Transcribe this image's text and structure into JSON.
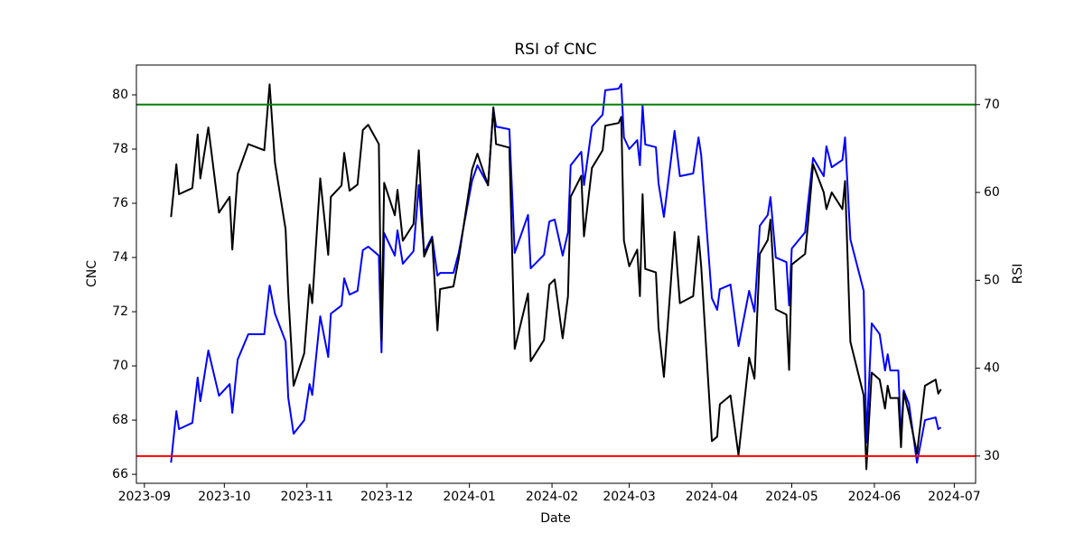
{
  "chart_data": {
    "type": "line",
    "title": "RSI of CNC",
    "xlabel": "Date",
    "ylabel": "CNC",
    "y2label": "RSI",
    "x": [
      "2023-09-11",
      "2023-09-13",
      "2023-09-14",
      "2023-09-19",
      "2023-09-21",
      "2023-09-22",
      "2023-09-25",
      "2023-09-29",
      "2023-10-03",
      "2023-10-04",
      "2023-10-06",
      "2023-10-10",
      "2023-10-16",
      "2023-10-18",
      "2023-10-20",
      "2023-10-24",
      "2023-10-25",
      "2023-10-27",
      "2023-10-31",
      "2023-11-02",
      "2023-11-03",
      "2023-11-06",
      "2023-11-09",
      "2023-11-10",
      "2023-11-14",
      "2023-11-15",
      "2023-11-17",
      "2023-11-20",
      "2023-11-22",
      "2023-11-24",
      "2023-11-28",
      "2023-11-29",
      "2023-11-30",
      "2023-12-04",
      "2023-12-05",
      "2023-12-07",
      "2023-12-11",
      "2023-12-13",
      "2023-12-15",
      "2023-12-18",
      "2023-12-20",
      "2023-12-21",
      "2023-12-26",
      "2023-12-28",
      "2024-01-02",
      "2024-01-04",
      "2024-01-08",
      "2024-01-10",
      "2024-01-11",
      "2024-01-16",
      "2024-01-18",
      "2024-01-23",
      "2024-01-24",
      "2024-01-29",
      "2024-01-31",
      "2024-02-02",
      "2024-02-05",
      "2024-02-07",
      "2024-02-08",
      "2024-02-12",
      "2024-02-13",
      "2024-02-16",
      "2024-02-20",
      "2024-02-21",
      "2024-02-26",
      "2024-02-27",
      "2024-02-28",
      "2024-03-01",
      "2024-03-04",
      "2024-03-05",
      "2024-03-06",
      "2024-03-07",
      "2024-03-11",
      "2024-03-12",
      "2024-03-14",
      "2024-03-18",
      "2024-03-20",
      "2024-03-25",
      "2024-03-27",
      "2024-03-28",
      "2024-04-01",
      "2024-04-03",
      "2024-04-04",
      "2024-04-08",
      "2024-04-11",
      "2024-04-15",
      "2024-04-17",
      "2024-04-19",
      "2024-04-22",
      "2024-04-23",
      "2024-04-25",
      "2024-04-29",
      "2024-04-30",
      "2024-05-01",
      "2024-05-06",
      "2024-05-07",
      "2024-05-09",
      "2024-05-13",
      "2024-05-14",
      "2024-05-16",
      "2024-05-20",
      "2024-05-21",
      "2024-05-23",
      "2024-05-28",
      "2024-05-29",
      "2024-05-31",
      "2024-06-03",
      "2024-06-05",
      "2024-06-06",
      "2024-06-07",
      "2024-06-10",
      "2024-06-11",
      "2024-06-12",
      "2024-06-14",
      "2024-06-17",
      "2024-06-20",
      "2024-06-24",
      "2024-06-25",
      "2024-06-26"
    ],
    "series": [
      {
        "color": "#0000ff",
        "axis": "y",
        "values": [
          66.43,
          68.33,
          67.67,
          67.9,
          69.57,
          68.7,
          70.57,
          68.9,
          69.33,
          68.27,
          70.23,
          71.17,
          71.17,
          72.97,
          71.93,
          70.9,
          68.83,
          67.5,
          68,
          69.33,
          68.93,
          71.83,
          70.33,
          71.93,
          72.23,
          73.23,
          72.63,
          72.77,
          74.27,
          74.4,
          74.07,
          70.5,
          74.9,
          74.07,
          75,
          73.77,
          74.23,
          76.67,
          74.17,
          74.77,
          73.33,
          73.43,
          73.43,
          74.17,
          76.83,
          77.4,
          76.67,
          79.5,
          78.83,
          78.73,
          74.17,
          75.57,
          73.6,
          74.1,
          75.33,
          75.4,
          74.07,
          74.93,
          77.4,
          77.9,
          76.67,
          78.83,
          79.27,
          80.17,
          80.23,
          80.4,
          78.43,
          78,
          78.33,
          77.4,
          79.6,
          78.17,
          78.07,
          76.73,
          75.5,
          78.67,
          77,
          77.1,
          78.43,
          77.77,
          72.5,
          72.07,
          72.83,
          73,
          70.73,
          72.77,
          72,
          75.17,
          75.57,
          76.23,
          74,
          73.83,
          72.23,
          74.33,
          74.93,
          75.9,
          77.67,
          77,
          78.1,
          77.33,
          77.6,
          78.43,
          74.67,
          72.77,
          67.17,
          71.57,
          71.17,
          69.83,
          70.43,
          69.83,
          69.83,
          67.33,
          69.1,
          68.6,
          66.43,
          68,
          68.1,
          67.67,
          67.73
        ]
      },
      {
        "color": "#000000",
        "axis": "y2",
        "values": [
          57.2,
          63.2,
          59.8,
          60.5,
          66.6,
          61.6,
          67.4,
          57.7,
          59.5,
          53.5,
          62.1,
          65.5,
          64.8,
          72.3,
          63.4,
          55.8,
          48.5,
          38,
          41.7,
          49.5,
          47.4,
          61.6,
          52.9,
          59.5,
          60.8,
          64.5,
          60.2,
          60.9,
          67.1,
          67.7,
          65.5,
          43.2,
          61.1,
          57.4,
          60.3,
          54.5,
          56.4,
          64.8,
          52.7,
          54.8,
          44.3,
          49,
          49.3,
          52.5,
          62.6,
          64.4,
          60.8,
          69.7,
          65.5,
          65.1,
          42.2,
          48.5,
          40.8,
          43.2,
          49.5,
          50.1,
          43.4,
          48.2,
          59.5,
          61.9,
          55,
          62.8,
          64.8,
          67.6,
          67.9,
          68.6,
          54.5,
          51.6,
          53.5,
          48.2,
          59.8,
          51.3,
          50.9,
          44.6,
          39,
          55.5,
          47.4,
          48.2,
          55,
          51.6,
          31.7,
          32.2,
          35.9,
          36.9,
          30.1,
          41.2,
          38.8,
          53,
          54.6,
          56.9,
          46.7,
          46.1,
          39.8,
          51.8,
          53,
          56.1,
          63.2,
          60,
          58.1,
          60,
          58.1,
          61.3,
          43,
          36.9,
          28.5,
          39.5,
          38.7,
          35.4,
          38,
          36.6,
          36.6,
          31,
          37.2,
          34.8,
          30.3,
          38,
          38.7,
          37.1,
          37.6
        ]
      }
    ],
    "hlines": [
      {
        "value": 70,
        "color": "#008000",
        "axis": "y2"
      },
      {
        "value": 30,
        "color": "#ff0000",
        "axis": "y2"
      }
    ],
    "xlim": [
      "2023-08-29",
      "2024-07-09"
    ],
    "xticks": [
      {
        "value": "2023-09-01",
        "label": "2023-09"
      },
      {
        "value": "2023-10-01",
        "label": "2023-10"
      },
      {
        "value": "2023-11-01",
        "label": "2023-11"
      },
      {
        "value": "2023-12-01",
        "label": "2023-12"
      },
      {
        "value": "2024-01-01",
        "label": "2024-01"
      },
      {
        "value": "2024-02-01",
        "label": "2024-02"
      },
      {
        "value": "2024-03-01",
        "label": "2024-03"
      },
      {
        "value": "2024-04-01",
        "label": "2024-04"
      },
      {
        "value": "2024-05-01",
        "label": "2024-05"
      },
      {
        "value": "2024-06-01",
        "label": "2024-06"
      },
      {
        "value": "2024-07-01",
        "label": "2024-07"
      }
    ],
    "ylim": [
      65.67,
      81.1
    ],
    "yticks": [
      66,
      68,
      70,
      72,
      74,
      76,
      78,
      80
    ],
    "ycolor": "#0000ff",
    "y2lim": [
      26.9,
      74.5
    ],
    "y2ticks": [
      30,
      40,
      50,
      60,
      70
    ]
  }
}
